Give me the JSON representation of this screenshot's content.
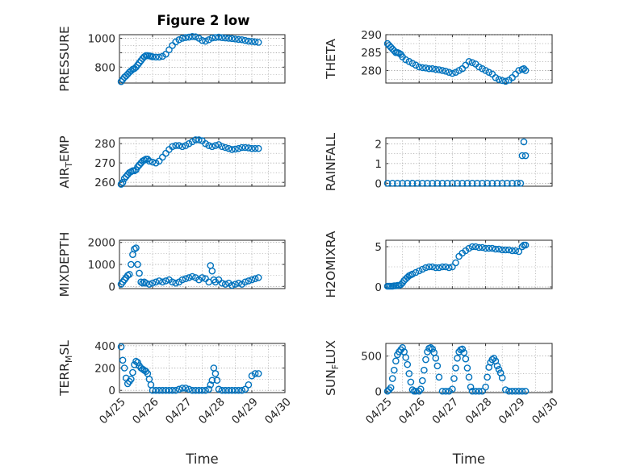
{
  "title": "Figure 2 low",
  "colors": {
    "marker": "#0072BD",
    "axis": "#262626",
    "grid": "#9a9a9a"
  },
  "x_tick_labels": [
    "04/25",
    "04/26",
    "04/27",
    "04/28",
    "04/29",
    "04/30"
  ],
  "chart_data": [
    {
      "type": "scatter",
      "ylabel": "PRESSURE",
      "xlabel": "",
      "ylim": [
        690,
        1025
      ],
      "yticks": [
        800,
        900,
        1000
      ],
      "ytick_labels": [
        "800",
        "",
        "1000"
      ],
      "xlim": [
        0,
        5
      ],
      "grid": true,
      "series": [
        {
          "x": [
            0.05,
            0.1,
            0.15,
            0.2,
            0.25,
            0.3,
            0.35,
            0.4,
            0.45,
            0.5,
            0.55,
            0.6,
            0.65,
            0.7,
            0.75,
            0.8,
            0.85,
            0.9,
            0.95,
            1.0,
            1.1,
            1.2,
            1.3,
            1.4,
            1.5,
            1.6,
            1.7,
            1.8,
            1.9,
            2.0,
            2.1,
            2.2,
            2.3,
            2.4,
            2.5,
            2.6,
            2.7,
            2.8,
            2.9,
            3.0,
            3.1,
            3.2,
            3.3,
            3.4,
            3.5,
            3.6,
            3.7,
            3.8,
            3.9,
            4.0,
            4.1,
            4.2
          ],
          "y": [
            700,
            715,
            730,
            740,
            752,
            765,
            775,
            785,
            790,
            800,
            815,
            830,
            845,
            860,
            872,
            880,
            880,
            878,
            876,
            872,
            870,
            870,
            875,
            890,
            920,
            950,
            975,
            990,
            1000,
            1005,
            1008,
            1012,
            1010,
            1000,
            985,
            980,
            990,
            1002,
            1005,
            1008,
            1004,
            1002,
            1000,
            998,
            995,
            992,
            990,
            985,
            980,
            978,
            975,
            972
          ]
        }
      ]
    },
    {
      "type": "scatter",
      "ylabel": "THETA",
      "xlabel": "",
      "ylim": [
        276.5,
        290
      ],
      "yticks": [
        280,
        285,
        290
      ],
      "ytick_labels": [
        "280",
        "285",
        "290"
      ],
      "xlim": [
        0,
        5
      ],
      "grid": true,
      "series": [
        {
          "x": [
            0.05,
            0.1,
            0.15,
            0.2,
            0.25,
            0.3,
            0.35,
            0.4,
            0.45,
            0.5,
            0.6,
            0.7,
            0.8,
            0.9,
            1.0,
            1.1,
            1.2,
            1.3,
            1.4,
            1.5,
            1.6,
            1.7,
            1.8,
            1.9,
            2.0,
            2.1,
            2.2,
            2.3,
            2.4,
            2.5,
            2.6,
            2.7,
            2.8,
            2.9,
            3.0,
            3.1,
            3.2,
            3.3,
            3.4,
            3.5,
            3.6,
            3.7,
            3.8,
            3.9,
            4.0,
            4.1,
            4.15,
            4.2
          ],
          "y": [
            287.5,
            287,
            286.5,
            286,
            285.5,
            285,
            285,
            284.8,
            284.5,
            283.8,
            283,
            282.5,
            282,
            281.5,
            281,
            280.8,
            280.7,
            280.5,
            280.5,
            280.3,
            280.2,
            280,
            279.8,
            279.5,
            279.2,
            279.5,
            280,
            280.5,
            281.5,
            282.5,
            282.2,
            281.8,
            281,
            280.5,
            280,
            279.5,
            279,
            278,
            277.5,
            277.2,
            277,
            277.3,
            278,
            279,
            280,
            280.3,
            280.5,
            280
          ]
        }
      ]
    },
    {
      "type": "scatter",
      "ylabel": "AIR_TEMP",
      "xlabel": "",
      "ylim": [
        258,
        283
      ],
      "yticks": [
        260,
        270,
        280
      ],
      "ytick_labels": [
        "260",
        "270",
        "280"
      ],
      "xlim": [
        0,
        5
      ],
      "grid": true,
      "series": [
        {
          "x": [
            0.05,
            0.1,
            0.15,
            0.2,
            0.25,
            0.3,
            0.35,
            0.4,
            0.45,
            0.5,
            0.55,
            0.6,
            0.65,
            0.7,
            0.75,
            0.8,
            0.85,
            0.9,
            1.0,
            1.1,
            1.2,
            1.3,
            1.4,
            1.5,
            1.6,
            1.7,
            1.8,
            1.9,
            2.0,
            2.1,
            2.2,
            2.3,
            2.4,
            2.5,
            2.6,
            2.7,
            2.8,
            2.9,
            3.0,
            3.1,
            3.2,
            3.3,
            3.4,
            3.5,
            3.6,
            3.7,
            3.8,
            3.9,
            4.0,
            4.1,
            4.2
          ],
          "y": [
            259,
            260,
            262,
            263,
            264,
            265,
            265.5,
            266,
            266,
            266.5,
            268,
            269,
            270,
            271,
            271.5,
            272,
            272,
            271,
            270.5,
            270,
            271,
            273,
            275,
            277,
            278.5,
            279,
            279,
            278.5,
            279,
            280,
            281,
            282,
            282,
            281.5,
            280,
            279,
            278.5,
            279,
            279.5,
            278.5,
            278,
            277.5,
            277,
            277.2,
            277.5,
            278,
            278,
            277.8,
            277.5,
            277.5,
            277.5
          ]
        }
      ]
    },
    {
      "type": "scatter",
      "ylabel": "RAINFALL",
      "xlabel": "",
      "ylim": [
        -0.15,
        2.3
      ],
      "yticks": [
        0,
        1,
        2
      ],
      "ytick_labels": [
        "0",
        "1",
        "2"
      ],
      "xlim": [
        0,
        5
      ],
      "grid": true,
      "series": [
        {
          "x": [
            0.05,
            0.2,
            0.35,
            0.5,
            0.65,
            0.8,
            0.95,
            1.1,
            1.25,
            1.4,
            1.55,
            1.7,
            1.85,
            2.0,
            2.15,
            2.3,
            2.45,
            2.6,
            2.75,
            2.9,
            3.05,
            3.2,
            3.35,
            3.5,
            3.65,
            3.8,
            3.95,
            4.05,
            4.1,
            4.15,
            4.2
          ],
          "y": [
            0,
            0,
            0,
            0,
            0,
            0,
            0,
            0,
            0,
            0,
            0,
            0,
            0,
            0,
            0,
            0,
            0,
            0,
            0,
            0,
            0,
            0,
            0,
            0,
            0,
            0,
            0,
            0,
            1.4,
            2.1,
            1.4
          ]
        }
      ]
    },
    {
      "type": "scatter",
      "ylabel": "MIXDEPTH",
      "xlabel": "",
      "ylim": [
        -100,
        2100
      ],
      "yticks": [
        0,
        1000,
        2000
      ],
      "ytick_labels": [
        "0",
        "1000",
        "2000"
      ],
      "xlim": [
        0,
        5
      ],
      "grid": true,
      "series": [
        {
          "x": [
            0.05,
            0.1,
            0.15,
            0.2,
            0.25,
            0.3,
            0.35,
            0.4,
            0.45,
            0.5,
            0.55,
            0.6,
            0.65,
            0.7,
            0.75,
            0.8,
            0.9,
            1.0,
            1.1,
            1.2,
            1.3,
            1.4,
            1.5,
            1.6,
            1.7,
            1.8,
            1.9,
            2.0,
            2.1,
            2.2,
            2.3,
            2.4,
            2.5,
            2.6,
            2.7,
            2.75,
            2.8,
            2.85,
            2.9,
            3.0,
            3.1,
            3.2,
            3.3,
            3.4,
            3.5,
            3.6,
            3.7,
            3.8,
            3.9,
            4.0,
            4.1,
            4.2
          ],
          "y": [
            100,
            200,
            300,
            400,
            500,
            550,
            1000,
            1450,
            1700,
            1750,
            1000,
            600,
            200,
            150,
            200,
            150,
            100,
            150,
            200,
            250,
            200,
            250,
            300,
            200,
            150,
            200,
            300,
            350,
            400,
            450,
            400,
            300,
            400,
            350,
            200,
            950,
            700,
            300,
            200,
            300,
            150,
            100,
            150,
            50,
            100,
            150,
            100,
            200,
            250,
            300,
            350,
            400
          ]
        }
      ]
    },
    {
      "type": "scatter",
      "ylabel": "H2OMIXRA",
      "xlabel": "",
      "ylim": [
        -0.2,
        5.8
      ],
      "yticks": [
        0,
        5
      ],
      "ytick_labels": [
        "0",
        "5"
      ],
      "xlim": [
        0,
        5
      ],
      "grid": true,
      "series": [
        {
          "x": [
            0.05,
            0.1,
            0.15,
            0.2,
            0.25,
            0.3,
            0.35,
            0.4,
            0.45,
            0.5,
            0.55,
            0.6,
            0.65,
            0.7,
            0.75,
            0.8,
            0.9,
            1.0,
            1.1,
            1.2,
            1.3,
            1.4,
            1.5,
            1.6,
            1.7,
            1.8,
            1.9,
            2.0,
            2.1,
            2.2,
            2.3,
            2.4,
            2.5,
            2.6,
            2.7,
            2.8,
            2.9,
            3.0,
            3.1,
            3.2,
            3.3,
            3.4,
            3.5,
            3.6,
            3.7,
            3.8,
            3.9,
            4.0,
            4.1,
            4.15,
            4.2
          ],
          "y": [
            0.1,
            0.1,
            0.1,
            0.1,
            0.15,
            0.15,
            0.2,
            0.2,
            0.3,
            0.5,
            0.8,
            1.0,
            1.2,
            1.4,
            1.5,
            1.6,
            1.8,
            2.0,
            2.2,
            2.4,
            2.5,
            2.5,
            2.4,
            2.4,
            2.5,
            2.5,
            2.4,
            2.5,
            3.0,
            3.8,
            4.2,
            4.5,
            4.8,
            5.0,
            5.0,
            4.9,
            4.9,
            4.8,
            4.8,
            4.8,
            4.7,
            4.7,
            4.6,
            4.6,
            4.6,
            4.5,
            4.5,
            4.4,
            5.0,
            5.2,
            5.2
          ]
        }
      ]
    },
    {
      "type": "scatter",
      "ylabel": "TERR_MSL",
      "xlabel": "Time",
      "ylim": [
        -20,
        420
      ],
      "yticks": [
        0,
        200,
        400
      ],
      "ytick_labels": [
        "0",
        "200",
        "400"
      ],
      "xlim": [
        0,
        5
      ],
      "grid": true,
      "series": [
        {
          "x": [
            0.05,
            0.1,
            0.15,
            0.2,
            0.25,
            0.3,
            0.35,
            0.4,
            0.45,
            0.5,
            0.55,
            0.6,
            0.65,
            0.7,
            0.75,
            0.8,
            0.85,
            0.9,
            0.95,
            1.0,
            1.1,
            1.2,
            1.3,
            1.4,
            1.5,
            1.6,
            1.7,
            1.8,
            1.9,
            2.0,
            2.1,
            2.2,
            2.3,
            2.4,
            2.5,
            2.6,
            2.7,
            2.75,
            2.8,
            2.85,
            2.9,
            2.95,
            3.0,
            3.1,
            3.2,
            3.3,
            3.4,
            3.5,
            3.6,
            3.7,
            3.8,
            3.9,
            4.0,
            4.1,
            4.2
          ],
          "y": [
            390,
            270,
            200,
            110,
            60,
            80,
            100,
            160,
            230,
            260,
            250,
            220,
            200,
            190,
            180,
            170,
            150,
            100,
            50,
            0,
            0,
            0,
            0,
            0,
            0,
            0,
            0,
            10,
            20,
            20,
            10,
            0,
            0,
            0,
            0,
            0,
            10,
            50,
            90,
            200,
            150,
            90,
            10,
            0,
            0,
            0,
            0,
            0,
            0,
            0,
            10,
            50,
            130,
            150,
            150
          ]
        }
      ]
    },
    {
      "type": "scatter",
      "ylabel": "SUN_FLUX",
      "xlabel": "Time",
      "ylim": [
        -20,
        680
      ],
      "yticks": [
        0,
        500
      ],
      "ytick_labels": [
        "0",
        "500"
      ],
      "xlim": [
        0,
        5
      ],
      "grid": true,
      "series": [
        {
          "x": [
            0.05,
            0.1,
            0.15,
            0.2,
            0.25,
            0.3,
            0.35,
            0.4,
            0.45,
            0.5,
            0.55,
            0.6,
            0.65,
            0.7,
            0.75,
            0.8,
            0.85,
            0.9,
            1.0,
            1.05,
            1.1,
            1.15,
            1.2,
            1.25,
            1.3,
            1.35,
            1.4,
            1.45,
            1.5,
            1.55,
            1.6,
            1.7,
            1.8,
            1.9,
            2.0,
            2.05,
            2.1,
            2.15,
            2.2,
            2.25,
            2.3,
            2.35,
            2.4,
            2.45,
            2.5,
            2.55,
            2.6,
            2.7,
            2.8,
            2.9,
            3.0,
            3.05,
            3.1,
            3.15,
            3.2,
            3.25,
            3.3,
            3.35,
            3.4,
            3.45,
            3.5,
            3.6,
            3.7,
            3.8,
            3.9,
            4.0,
            4.1,
            4.2
          ],
          "y": [
            0,
            20,
            50,
            180,
            300,
            430,
            520,
            560,
            590,
            620,
            560,
            480,
            380,
            250,
            130,
            20,
            0,
            0,
            0,
            30,
            150,
            300,
            450,
            560,
            610,
            620,
            600,
            550,
            470,
            360,
            200,
            0,
            0,
            0,
            30,
            180,
            330,
            470,
            560,
            590,
            600,
            550,
            460,
            330,
            200,
            60,
            0,
            0,
            0,
            0,
            60,
            200,
            340,
            410,
            450,
            470,
            430,
            360,
            310,
            260,
            190,
            20,
            0,
            0,
            0,
            0,
            0,
            0
          ]
        }
      ]
    }
  ]
}
